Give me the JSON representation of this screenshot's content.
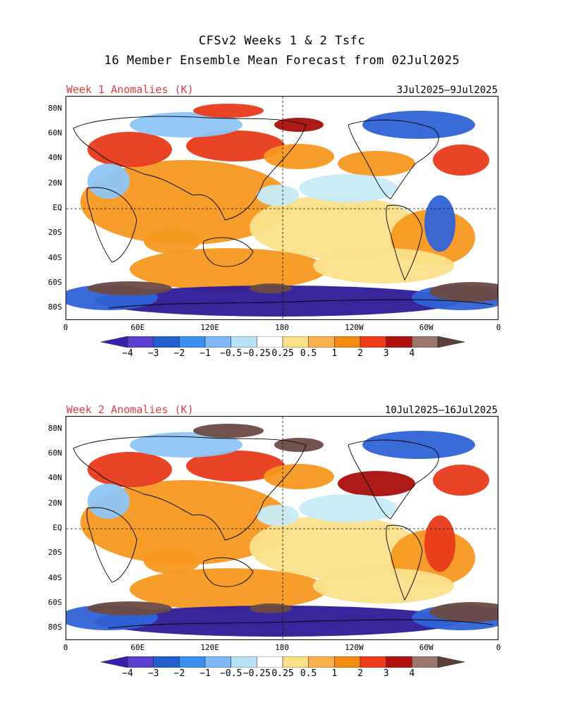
{
  "title": {
    "line1": "CFSv2 Weeks 1 & 2 Tsfc",
    "line2": "16 Member Ensemble Mean Forecast from 02Jul2025"
  },
  "panels": [
    {
      "label": "Week 1 Anomalies (K)",
      "dates": "3Jul2025–9Jul2025"
    },
    {
      "label": "Week 2 Anomalies (K)",
      "dates": "10Jul2025–16Jul2025"
    }
  ],
  "lat_labels": [
    "80N",
    "60N",
    "40N",
    "20N",
    "EQ",
    "20S",
    "40S",
    "60S",
    "80S"
  ],
  "lon_labels": [
    "0",
    "60E",
    "120E",
    "180",
    "120W",
    "60W",
    "0"
  ],
  "colorbar": {
    "unit": "K",
    "labels": [
      "−4",
      "−3",
      "−2",
      "−1",
      "−0.5",
      "−0.25",
      "0.25",
      "0.5",
      "1",
      "2",
      "3",
      "4"
    ],
    "colors": [
      "#3a1fa8",
      "#5a3fd0",
      "#1f5fd0",
      "#3c8ef0",
      "#7fb8f8",
      "#b7e2f5",
      "#ffffff",
      "#fbe08a",
      "#fbb24a",
      "#f58a10",
      "#ee3c1b",
      "#b0100f",
      "#9a766e",
      "#5b3f36"
    ]
  },
  "legend_colors": {
    "deep_blue": "#2d1a96",
    "blue": "#2f63d6",
    "light_blue": "#8ec5f5",
    "pale_blue": "#c7ebf7",
    "pale_yellow": "#fbe08a",
    "orange": "#f79820",
    "red": "#e83a1a",
    "dark_red": "#a80f0c",
    "brown": "#6b4b42"
  }
}
